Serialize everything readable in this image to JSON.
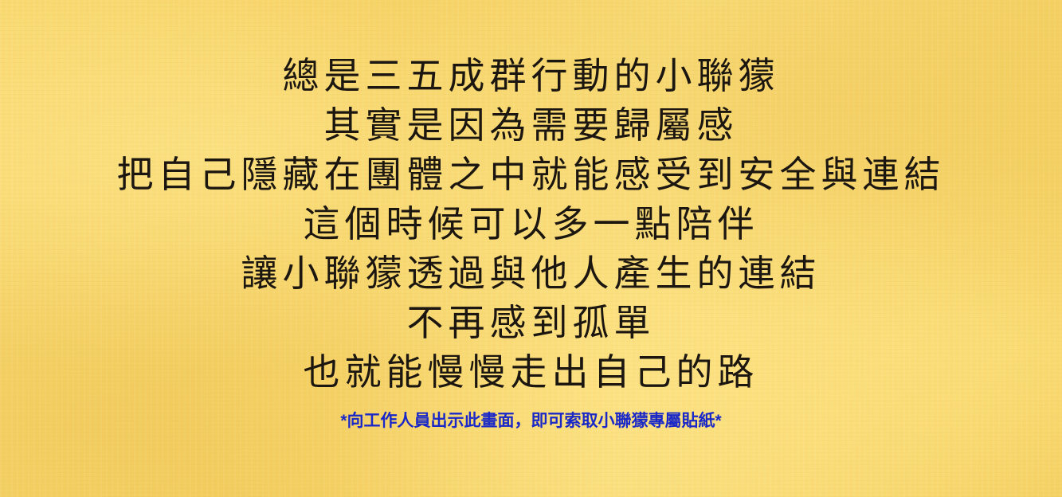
{
  "poem": {
    "lines": [
      "總是三五成群行動的小聯獴",
      "其實是因為需要歸屬感",
      "把自己隱藏在團體之中就能感受到安全與連結",
      "這個時候可以多一點陪伴",
      "讓小聯獴透過與他人產生的連結",
      "不再感到孤單",
      "也就能慢慢走出自己的路"
    ]
  },
  "note": "*向工作人員出示此畫面，即可索取小聯獴專屬貼紙*",
  "colors": {
    "background": "#f7d468",
    "text": "#1c1610",
    "note": "#1a28c8"
  }
}
